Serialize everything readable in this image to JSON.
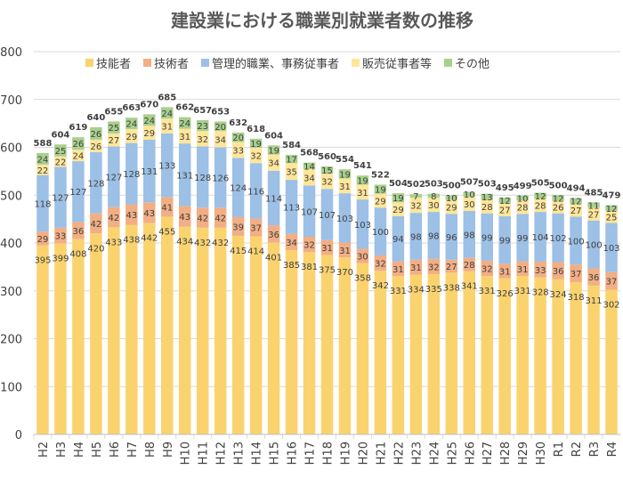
{
  "chart_data": {
    "type": "bar",
    "stacked": true,
    "title": "建設業における職業別就業者数の推移",
    "xlabel": "",
    "ylabel": "",
    "ylim": [
      0,
      800
    ],
    "yticks": [
      0,
      100,
      200,
      300,
      400,
      500,
      600,
      700,
      800
    ],
    "grid": true,
    "legend_position": "top",
    "categories": [
      "H2",
      "H3",
      "H4",
      "H5",
      "H6",
      "H7",
      "H8",
      "H9",
      "H10",
      "H11",
      "H12",
      "H13",
      "H14",
      "H15",
      "H16",
      "H17",
      "H18",
      "H19",
      "H20",
      "H21",
      "H22",
      "H23",
      "H24",
      "H25",
      "H26",
      "H27",
      "H28",
      "H29",
      "H30",
      "R1",
      "R2",
      "R3",
      "R4"
    ],
    "series": [
      {
        "name": "技能者",
        "color": "#FAD36E",
        "values": [
          395,
          399,
          408,
          420,
          433,
          438,
          442,
          455,
          434,
          432,
          432,
          415,
          414,
          401,
          385,
          381,
          375,
          370,
          358,
          342,
          331,
          334,
          335,
          338,
          341,
          331,
          326,
          331,
          328,
          324,
          318,
          311,
          302
        ]
      },
      {
        "name": "技術者",
        "color": "#F2AE84",
        "values": [
          29,
          33,
          36,
          42,
          42,
          43,
          43,
          41,
          43,
          42,
          42,
          39,
          37,
          36,
          34,
          32,
          31,
          31,
          30,
          32,
          31,
          31,
          32,
          27,
          28,
          32,
          31,
          31,
          33,
          36,
          37,
          36,
          37
        ]
      },
      {
        "name": "管理的職業、事務従事者",
        "color": "#9CC0E6",
        "values": [
          118,
          127,
          127,
          128,
          127,
          128,
          131,
          133,
          131,
          128,
          126,
          124,
          116,
          114,
          113,
          107,
          107,
          103,
          103,
          100,
          94,
          98,
          98,
          96,
          98,
          99,
          99,
          99,
          104,
          102,
          100,
          100,
          103
        ]
      },
      {
        "name": "販売従事者等",
        "color": "#FFE69A",
        "values": [
          22,
          22,
          24,
          26,
          27,
          29,
          29,
          31,
          31,
          32,
          34,
          33,
          32,
          34,
          35,
          34,
          32,
          31,
          31,
          29,
          29,
          32,
          30,
          29,
          30,
          28,
          27,
          28,
          28,
          26,
          27,
          27,
          25
        ]
      },
      {
        "name": "その他",
        "color": "#A8D08D",
        "values": [
          24,
          25,
          26,
          26,
          25,
          24,
          24,
          24,
          24,
          23,
          20,
          20,
          19,
          19,
          17,
          14,
          15,
          19,
          19,
          19,
          19,
          7,
          8,
          10,
          10,
          13,
          12,
          10,
          12,
          12,
          12,
          11,
          12
        ]
      }
    ],
    "totals": [
      588,
      604,
      619,
      640,
      655,
      663,
      670,
      685,
      662,
      657,
      653,
      632,
      618,
      604,
      584,
      568,
      560,
      554,
      541,
      522,
      504,
      502,
      503,
      500,
      507,
      503,
      495,
      499,
      505,
      500,
      494,
      485,
      479
    ]
  }
}
